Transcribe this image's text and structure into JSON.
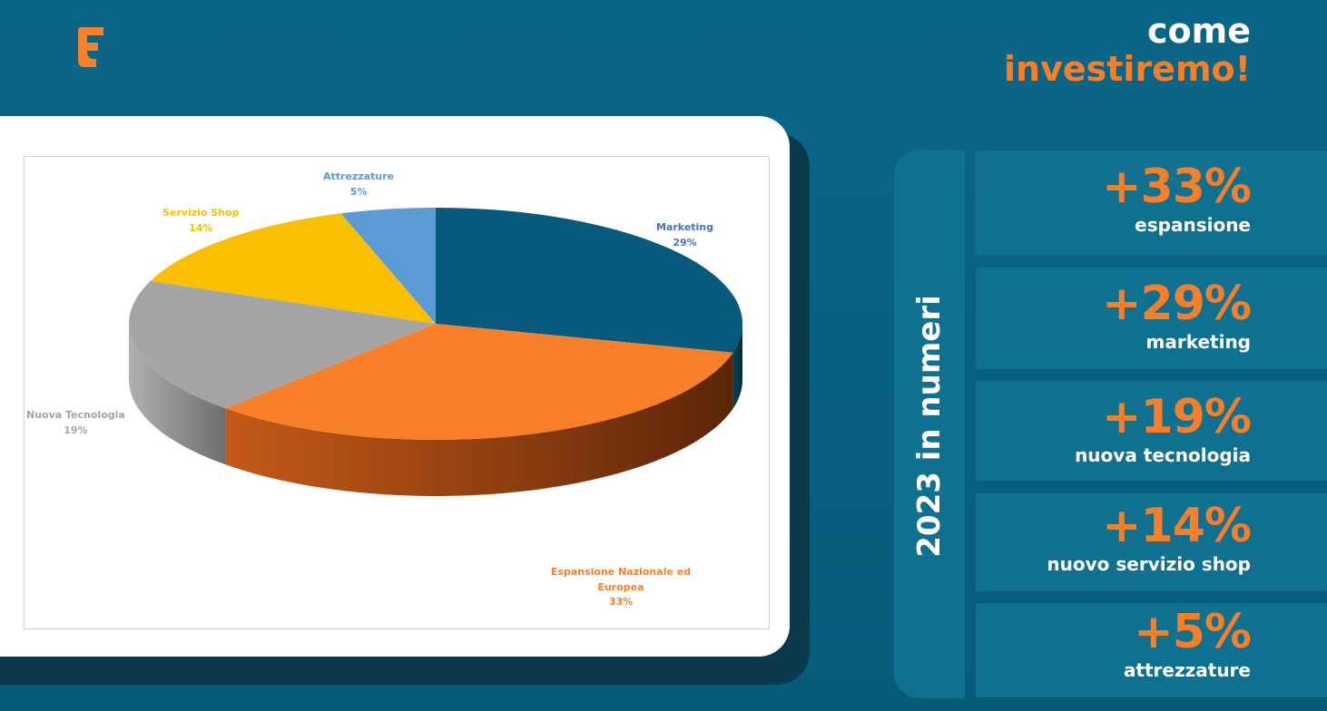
{
  "header": {
    "line1": "come",
    "line2": "investiremo!"
  },
  "brand": {
    "accent": "#f77f2a",
    "background": "#0a6687",
    "panel": "#0f7090"
  },
  "stats_panel": {
    "vertical_title": "2023 in numeri",
    "items": [
      {
        "value": "+33%",
        "label": "espansione"
      },
      {
        "value": "+29%",
        "label": "marketing"
      },
      {
        "value": "+19%",
        "label": "nuova tecnologia"
      },
      {
        "value": "+14%",
        "label": "nuovo servizio shop"
      },
      {
        "value": "+5%",
        "label": "attrezzature"
      }
    ]
  },
  "chart_data": {
    "type": "pie",
    "title": "",
    "slices": [
      {
        "name": "Marketing",
        "value": 29,
        "pct_label": "29%",
        "color": "#075a7c"
      },
      {
        "name": "Espansione Nazionale ed Europea",
        "value": 33,
        "pct_label": "33%",
        "color": "#f77f2a"
      },
      {
        "name": "Nuova Tecnologia",
        "value": 19,
        "pct_label": "19%",
        "color": "#a5a5a5"
      },
      {
        "name": "Servizio Shop",
        "value": 14,
        "pct_label": "14%",
        "color": "#f9bf00"
      },
      {
        "name": "Attrezzature",
        "value": 5,
        "pct_label": "5%",
        "color": "#5b9bd5"
      }
    ]
  }
}
